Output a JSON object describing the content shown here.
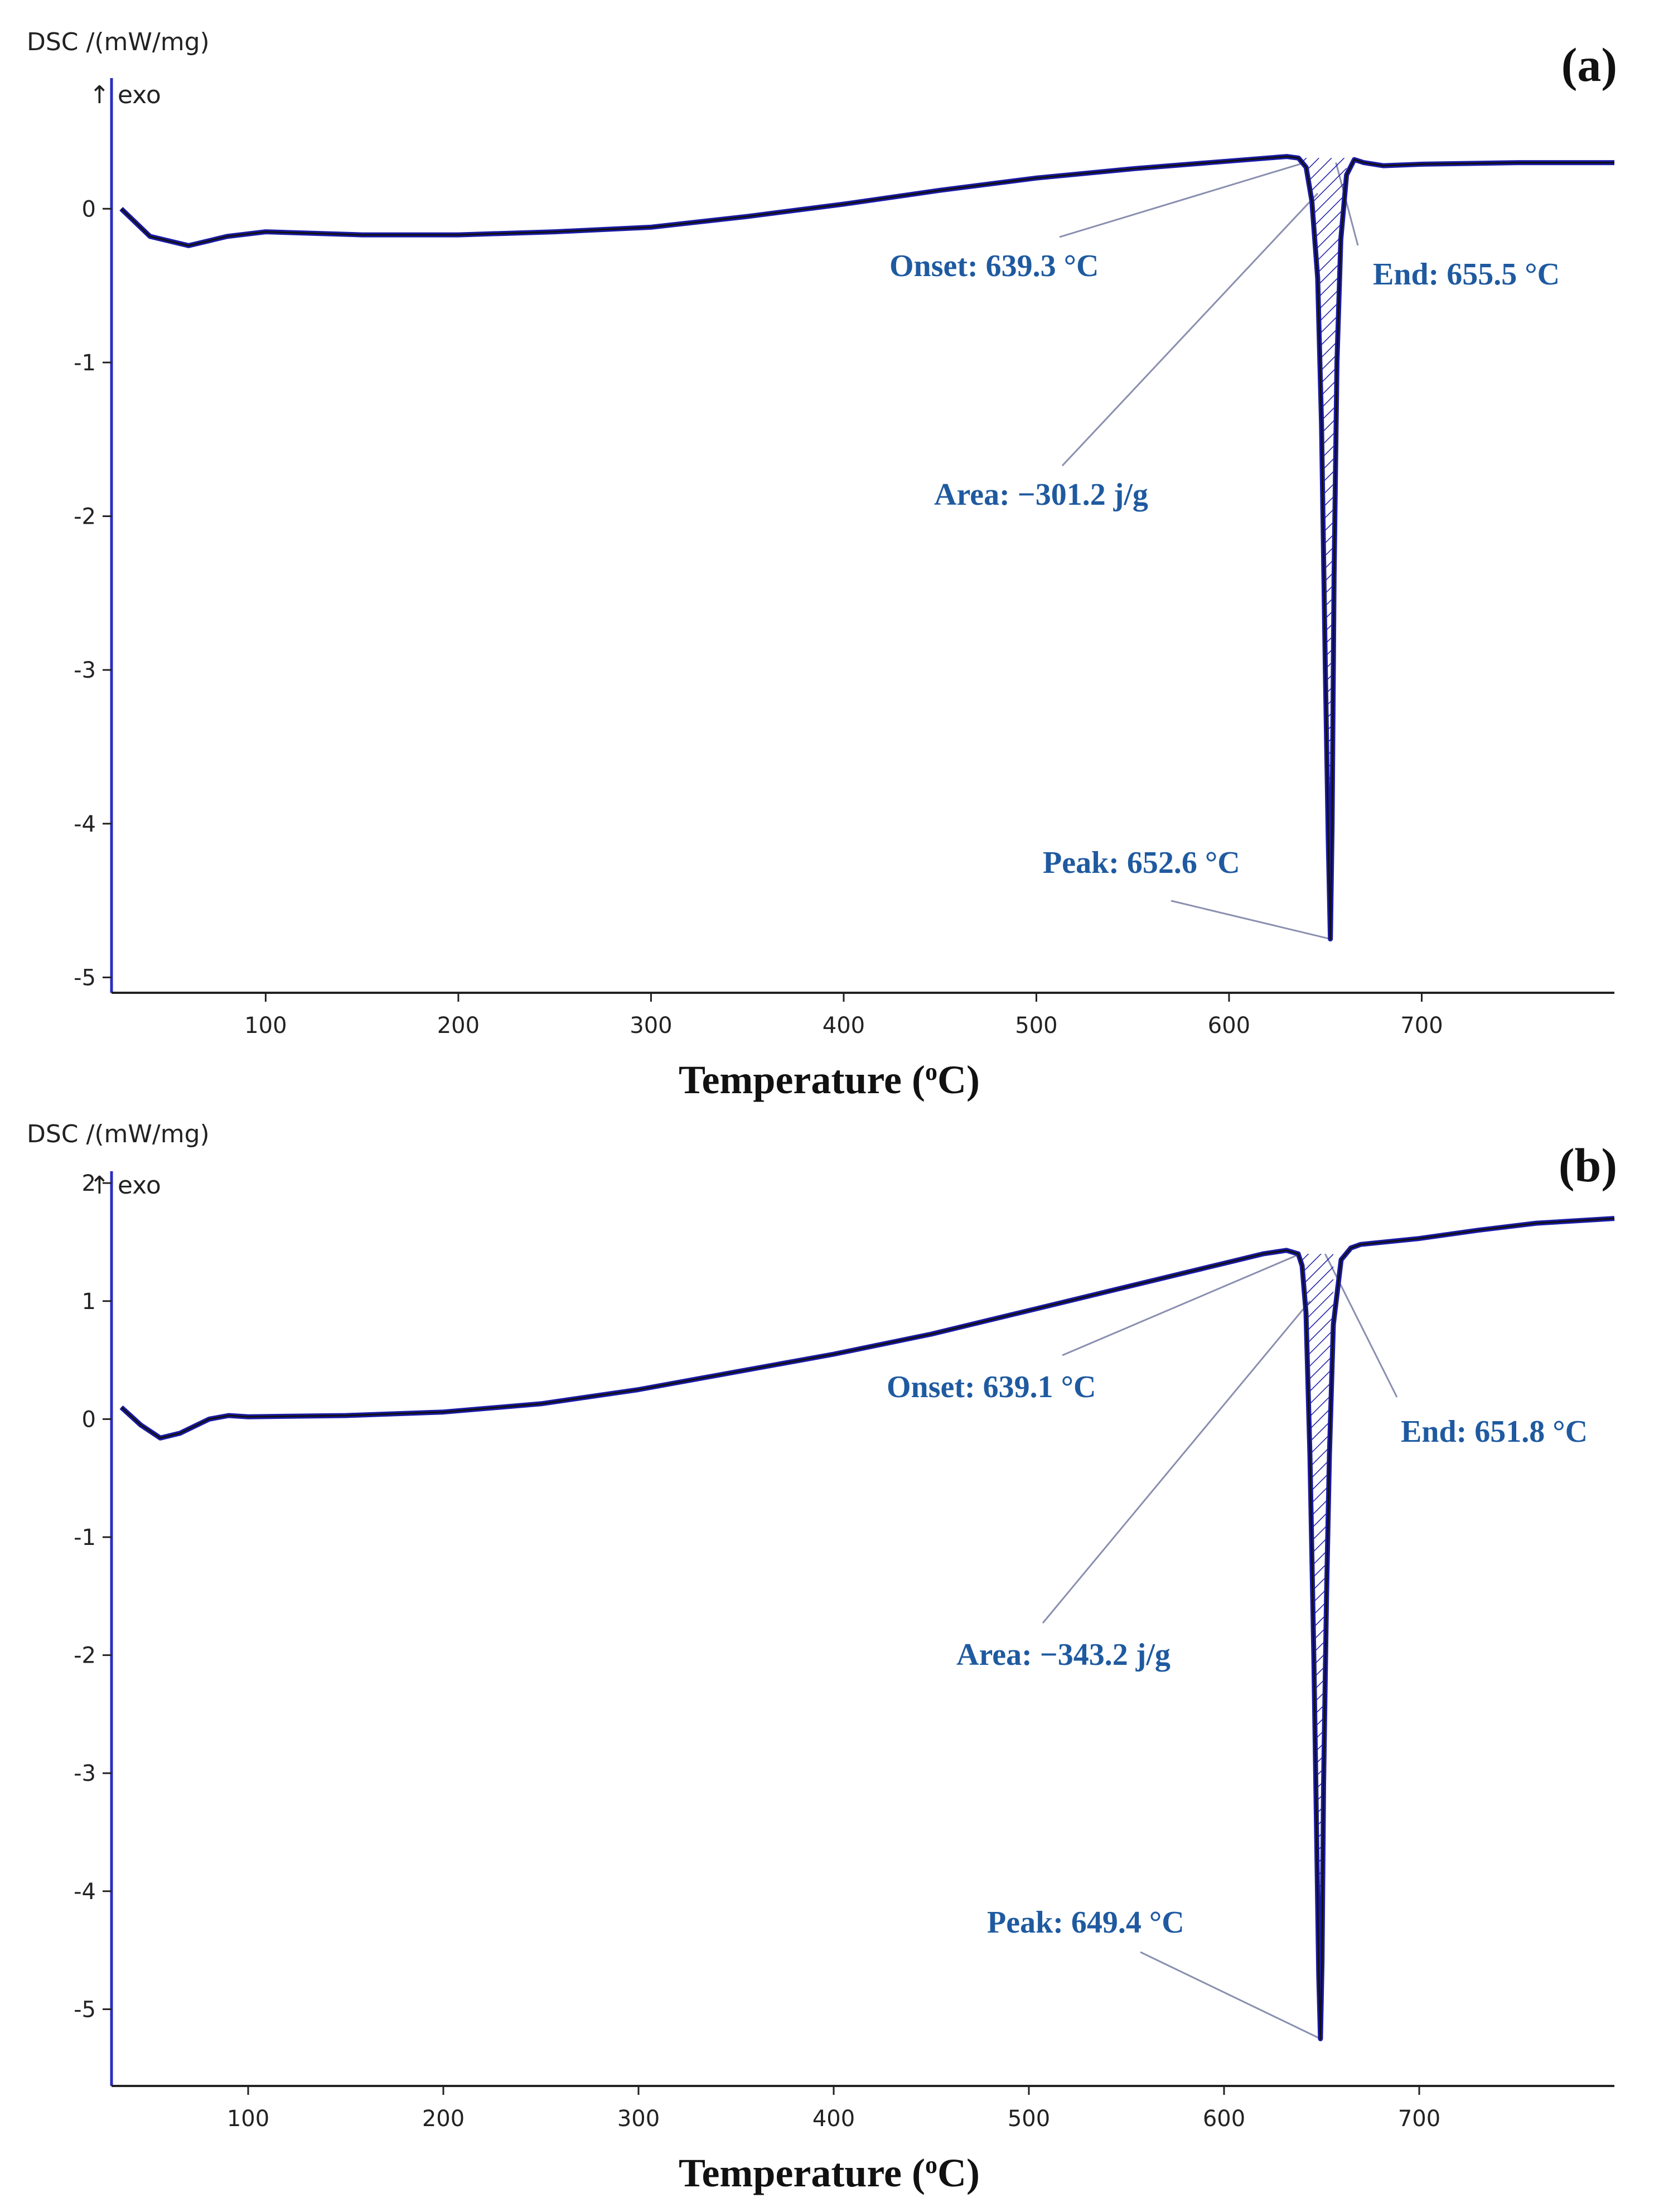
{
  "chart_data": [
    {
      "type": "line",
      "panel_label": "(a)",
      "ylabel": "DSC /(mW/mg)",
      "exo_label": "↑ exo",
      "xlabel": "Temperature (°C)",
      "xlabel_main": "Temperature (",
      "xlabel_sup": "o",
      "xlabel_end": "C)",
      "xlim": [
        20,
        800
      ],
      "ylim": [
        -5.1,
        0.85
      ],
      "x_ticks": [
        100,
        200,
        300,
        400,
        500,
        600,
        700
      ],
      "y_ticks": [
        0,
        -1,
        -2,
        -3,
        -4,
        -5
      ],
      "series": [
        {
          "name": "DSC",
          "color": "#1a1aa6",
          "x": [
            25,
            40,
            60,
            80,
            100,
            150,
            200,
            250,
            300,
            350,
            400,
            450,
            500,
            550,
            600,
            620,
            630,
            636,
            640,
            643,
            646,
            648,
            650,
            651.5,
            652.6,
            653.5,
            654.5,
            656,
            658,
            661,
            665,
            670,
            680,
            700,
            750,
            800
          ],
          "y": [
            0.0,
            -0.18,
            -0.24,
            -0.18,
            -0.15,
            -0.17,
            -0.17,
            -0.15,
            -0.12,
            -0.05,
            0.03,
            0.12,
            0.2,
            0.26,
            0.31,
            0.33,
            0.34,
            0.33,
            0.27,
            0.05,
            -0.45,
            -1.4,
            -3.0,
            -4.1,
            -4.75,
            -4.0,
            -2.4,
            -1.0,
            -0.2,
            0.22,
            0.32,
            0.3,
            0.28,
            0.29,
            0.3,
            0.3
          ]
        }
      ],
      "annotations": [
        {
          "label": "Onset: 639.3 °C",
          "x": 639.3,
          "y": 0.3
        },
        {
          "label": "End: 655.5 °C",
          "x": 655.5,
          "y": 0.3
        },
        {
          "label": "Area: −301.2 j/g",
          "x": 646,
          "y": 0.1
        },
        {
          "label": "Peak: 652.6 °C",
          "x": 652.6,
          "y": -4.75
        }
      ]
    },
    {
      "type": "line",
      "panel_label": "(b)",
      "ylabel": "DSC /(mW/mg)",
      "exo_label": "↑ exo",
      "xlabel": "Temperature (°C)",
      "xlabel_main": "Temperature (",
      "xlabel_sup": "o",
      "xlabel_end": "C)",
      "xlim": [
        30,
        800
      ],
      "ylim": [
        -5.65,
        2.1
      ],
      "x_ticks": [
        100,
        200,
        300,
        400,
        500,
        600,
        700
      ],
      "y_ticks": [
        2,
        1,
        0,
        -1,
        -2,
        -3,
        -4,
        -5
      ],
      "series": [
        {
          "name": "DSC",
          "color": "#1a1aa6",
          "x": [
            35,
            45,
            55,
            65,
            80,
            90,
            100,
            150,
            200,
            250,
            300,
            350,
            400,
            450,
            500,
            550,
            600,
            620,
            632,
            638,
            640,
            642,
            644,
            646,
            647.5,
            648.5,
            649.4,
            650.2,
            651,
            652.5,
            654,
            656,
            660,
            665,
            670,
            700,
            730,
            760,
            780,
            800
          ],
          "y": [
            0.1,
            -0.05,
            -0.16,
            -0.12,
            0.0,
            0.03,
            0.02,
            0.03,
            0.06,
            0.13,
            0.25,
            0.4,
            0.55,
            0.72,
            0.92,
            1.12,
            1.32,
            1.4,
            1.43,
            1.4,
            1.3,
            0.9,
            -0.3,
            -2.0,
            -3.6,
            -4.7,
            -5.25,
            -4.6,
            -3.1,
            -1.5,
            -0.3,
            0.8,
            1.35,
            1.45,
            1.48,
            1.53,
            1.6,
            1.66,
            1.68,
            1.7
          ]
        }
      ],
      "annotations": [
        {
          "label": "Onset: 639.1 °C",
          "x": 639.1,
          "y": 1.4
        },
        {
          "label": "End: 651.8 °C",
          "x": 651.8,
          "y": 1.4
        },
        {
          "label": "Area: −343.2 j/g",
          "x": 644,
          "y": 1.0
        },
        {
          "label": "Peak: 649.4 °C",
          "x": 649.4,
          "y": -5.25
        }
      ]
    }
  ]
}
